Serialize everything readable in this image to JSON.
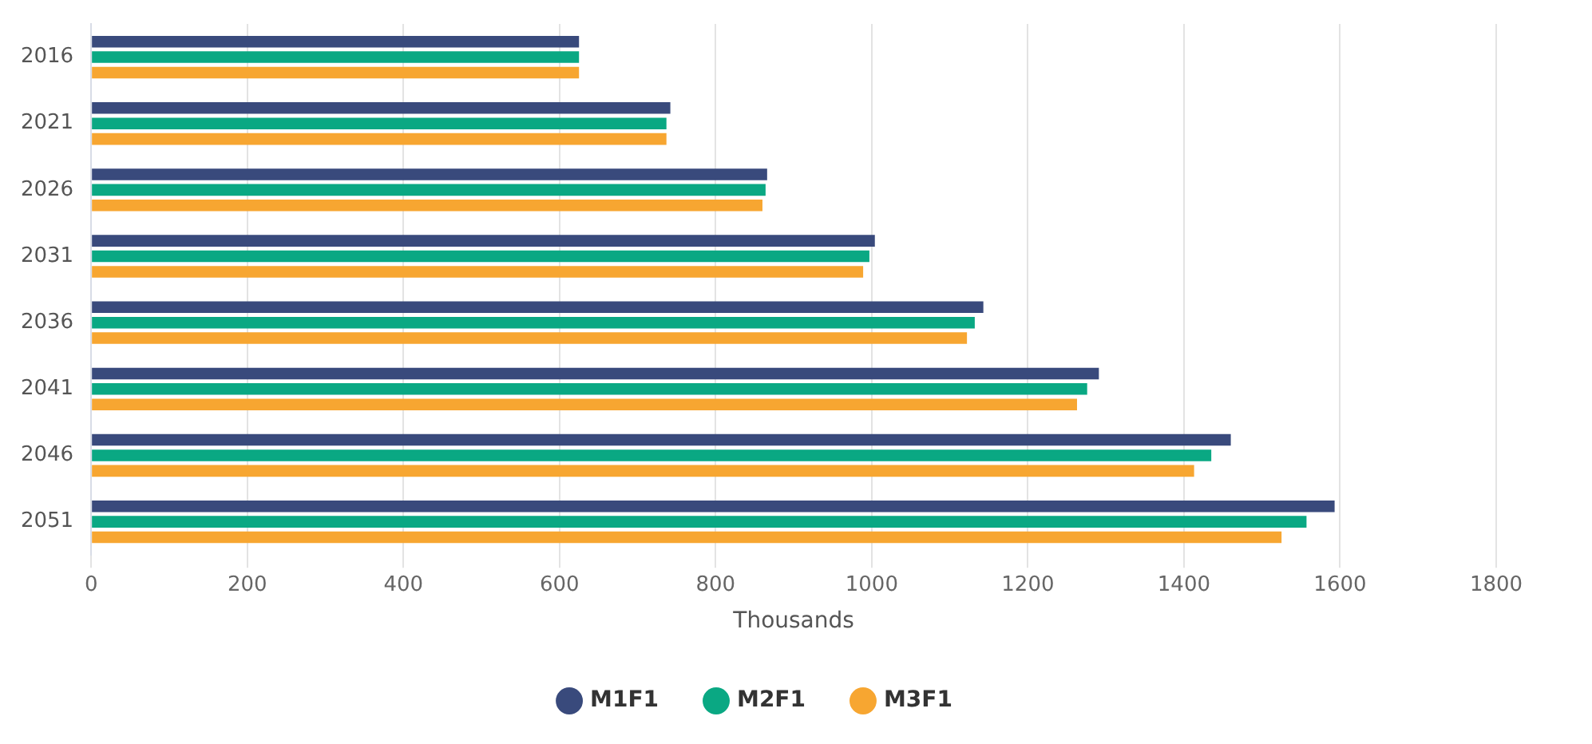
{
  "chart_data": {
    "type": "bar",
    "orientation": "horizontal",
    "xlabel": "Thousands",
    "categories": [
      "2016",
      "2021",
      "2026",
      "2031",
      "2036",
      "2041",
      "2046",
      "2051"
    ],
    "series": [
      {
        "name": "M1F1",
        "color": "#394a7c",
        "values": [
          625,
          742,
          866,
          1004,
          1143,
          1291,
          1460,
          1593
        ]
      },
      {
        "name": "M2F1",
        "color": "#0aa883",
        "values": [
          625,
          737,
          864,
          997,
          1132,
          1276,
          1435,
          1557
        ]
      },
      {
        "name": "M3F1",
        "color": "#f7a631",
        "values": [
          625,
          737,
          860,
          989,
          1122,
          1263,
          1413,
          1525
        ]
      }
    ],
    "xlim": [
      0,
      1800
    ],
    "xticks": [
      0,
      200,
      400,
      600,
      800,
      1000,
      1200,
      1400,
      1600,
      1800
    ],
    "grid": "x",
    "legend": "bottom"
  }
}
